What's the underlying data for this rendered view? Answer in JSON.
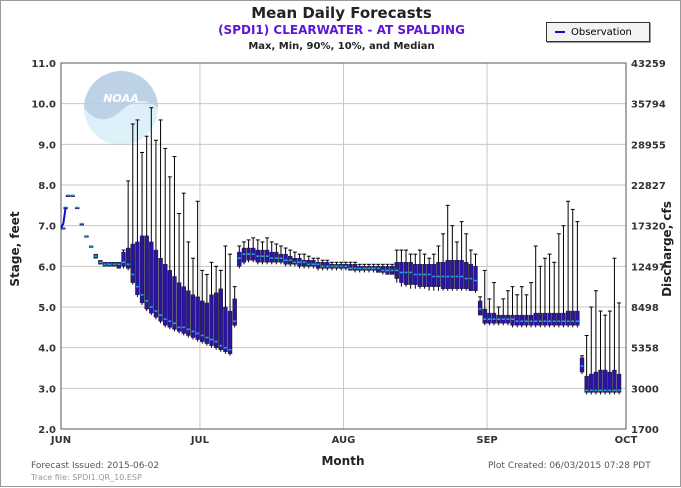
{
  "chart_data": {
    "type": "boxplot",
    "title": "Mean Daily Forecasts",
    "subtitle": "(SPDI1) CLEARWATER - AT SPALDING",
    "subtitle2": "Max, Min, 90%, 10%, and Median",
    "xlabel": "Month",
    "ylabel_left": "Stage, feet",
    "ylabel_right": "Discharge, cfs",
    "ylim": [
      2.0,
      11.0
    ],
    "yticks_left": [
      "2.0",
      "3.0",
      "4.0",
      "5.0",
      "6.0",
      "7.0",
      "8.0",
      "9.0",
      "10.0",
      "11.0"
    ],
    "yticks_right": [
      {
        "stage": 2.0,
        "label": "1700"
      },
      {
        "stage": 3.0,
        "label": "3000"
      },
      {
        "stage": 4.0,
        "label": "5358"
      },
      {
        "stage": 5.0,
        "label": "8498"
      },
      {
        "stage": 6.0,
        "label": "12497"
      },
      {
        "stage": 7.0,
        "label": "17320"
      },
      {
        "stage": 8.0,
        "label": "22827"
      },
      {
        "stage": 9.0,
        "label": "28955"
      },
      {
        "stage": 10.0,
        "label": "35794"
      },
      {
        "stage": 11.0,
        "label": "43259"
      }
    ],
    "xticks": [
      "JUN",
      "JUL",
      "AUG",
      "SEP",
      "OCT"
    ],
    "legend": {
      "label": "Observation",
      "placement": "top-right"
    },
    "observation": [
      [
        0.0,
        6.95
      ],
      [
        0.5,
        7.05
      ],
      [
        1.0,
        7.45
      ]
    ],
    "series": [
      {
        "day": 0.5,
        "median": 6.95,
        "p10": 6.95,
        "p90": 6.95,
        "min": 6.95,
        "max": 6.95
      },
      {
        "day": 1,
        "median": 7.45,
        "p10": 7.45,
        "p90": 7.45,
        "min": 7.45,
        "max": 7.45
      },
      {
        "day": 1.5,
        "median": 7.75,
        "p10": 7.75,
        "p90": 7.75,
        "min": 7.75,
        "max": 7.75
      },
      {
        "day": 2.5,
        "median": 7.75,
        "p10": 7.75,
        "p90": 7.75,
        "min": 7.75,
        "max": 7.75
      },
      {
        "day": 3.5,
        "median": 7.45,
        "p10": 7.45,
        "p90": 7.45,
        "min": 7.45,
        "max": 7.45
      },
      {
        "day": 4.5,
        "median": 7.05,
        "p10": 7.05,
        "p90": 7.05,
        "min": 7.05,
        "max": 7.05
      },
      {
        "day": 5.5,
        "median": 6.75,
        "p10": 6.75,
        "p90": 6.75,
        "min": 6.75,
        "max": 6.75
      },
      {
        "day": 6.5,
        "median": 6.5,
        "p10": 6.5,
        "p90": 6.5,
        "min": 6.5,
        "max": 6.5
      },
      {
        "day": 7.5,
        "median": 6.25,
        "p10": 6.2,
        "p90": 6.3,
        "min": 6.2,
        "max": 6.3
      },
      {
        "day": 8.5,
        "median": 6.1,
        "p10": 6.05,
        "p90": 6.15,
        "min": 6.05,
        "max": 6.15
      },
      {
        "day": 9.5,
        "median": 6.05,
        "p10": 6.0,
        "p90": 6.1,
        "min": 6.0,
        "max": 6.1
      },
      {
        "day": 10.5,
        "median": 6.05,
        "p10": 6.0,
        "p90": 6.1,
        "min": 6.0,
        "max": 6.1
      },
      {
        "day": 11.5,
        "median": 6.05,
        "p10": 6.0,
        "p90": 6.1,
        "min": 6.0,
        "max": 6.1
      },
      {
        "day": 12.5,
        "median": 6.05,
        "p10": 5.95,
        "p90": 6.1,
        "min": 5.95,
        "max": 6.1
      },
      {
        "day": 13.5,
        "median": 6.1,
        "p10": 6.0,
        "p90": 6.35,
        "min": 5.95,
        "max": 6.4
      },
      {
        "day": 14.5,
        "median": 6.05,
        "p10": 5.95,
        "p90": 6.45,
        "min": 5.9,
        "max": 8.1
      },
      {
        "day": 15.5,
        "median": 5.8,
        "p10": 5.6,
        "p90": 6.55,
        "min": 5.55,
        "max": 9.5
      },
      {
        "day": 16.5,
        "median": 5.5,
        "p10": 5.3,
        "p90": 6.6,
        "min": 5.25,
        "max": 9.6
      },
      {
        "day": 17.5,
        "median": 5.3,
        "p10": 5.1,
        "p90": 6.75,
        "min": 5.05,
        "max": 8.8
      },
      {
        "day": 18.5,
        "median": 5.15,
        "p10": 4.95,
        "p90": 6.75,
        "min": 4.9,
        "max": 9.2
      },
      {
        "day": 19.5,
        "median": 5.0,
        "p10": 4.85,
        "p90": 6.6,
        "min": 4.8,
        "max": 9.9
      },
      {
        "day": 20.5,
        "median": 4.9,
        "p10": 4.75,
        "p90": 6.4,
        "min": 4.7,
        "max": 9.1
      },
      {
        "day": 21.5,
        "median": 4.8,
        "p10": 4.65,
        "p90": 6.2,
        "min": 4.6,
        "max": 9.6
      },
      {
        "day": 22.5,
        "median": 4.7,
        "p10": 4.55,
        "p90": 6.05,
        "min": 4.5,
        "max": 8.9
      },
      {
        "day": 23.5,
        "median": 4.65,
        "p10": 4.5,
        "p90": 5.9,
        "min": 4.45,
        "max": 8.2
      },
      {
        "day": 24.5,
        "median": 4.6,
        "p10": 4.45,
        "p90": 5.75,
        "min": 4.4,
        "max": 8.7
      },
      {
        "day": 25.5,
        "median": 4.5,
        "p10": 4.4,
        "p90": 5.6,
        "min": 4.35,
        "max": 7.3
      },
      {
        "day": 26.5,
        "median": 4.5,
        "p10": 4.35,
        "p90": 5.5,
        "min": 4.3,
        "max": 7.8
      },
      {
        "day": 27.5,
        "median": 4.45,
        "p10": 4.3,
        "p90": 5.4,
        "min": 4.25,
        "max": 6.6
      },
      {
        "day": 28.5,
        "median": 4.4,
        "p10": 4.25,
        "p90": 5.3,
        "min": 4.2,
        "max": 6.2
      },
      {
        "day": 29.5,
        "median": 4.35,
        "p10": 4.2,
        "p90": 5.25,
        "min": 4.15,
        "max": 7.6
      },
      {
        "day": 30.5,
        "median": 4.3,
        "p10": 4.15,
        "p90": 5.15,
        "min": 4.1,
        "max": 5.9
      },
      {
        "day": 31.5,
        "median": 4.25,
        "p10": 4.1,
        "p90": 5.1,
        "min": 4.05,
        "max": 5.8
      },
      {
        "day": 32.5,
        "median": 4.2,
        "p10": 4.05,
        "p90": 5.3,
        "min": 4.0,
        "max": 6.1
      },
      {
        "day": 33.5,
        "median": 4.15,
        "p10": 4.0,
        "p90": 5.35,
        "min": 3.95,
        "max": 6.0
      },
      {
        "day": 34.5,
        "median": 4.05,
        "p10": 3.95,
        "p90": 5.45,
        "min": 3.9,
        "max": 5.9
      },
      {
        "day": 35.5,
        "median": 4.0,
        "p10": 3.9,
        "p90": 5.0,
        "min": 3.85,
        "max": 6.5
      },
      {
        "day": 36.5,
        "median": 3.95,
        "p10": 3.85,
        "p90": 4.9,
        "min": 3.8,
        "max": 6.3
      },
      {
        "day": 37.5,
        "median": 4.65,
        "p10": 4.55,
        "p90": 5.2,
        "min": 4.5,
        "max": 5.5
      },
      {
        "day": 38.5,
        "median": 6.2,
        "p10": 6.0,
        "p90": 6.35,
        "min": 5.95,
        "max": 6.5
      },
      {
        "day": 39.5,
        "median": 6.3,
        "p10": 6.1,
        "p90": 6.45,
        "min": 6.05,
        "max": 6.6
      },
      {
        "day": 40.5,
        "median": 6.3,
        "p10": 6.15,
        "p90": 6.45,
        "min": 6.1,
        "max": 6.65
      },
      {
        "day": 41.5,
        "median": 6.3,
        "p10": 6.15,
        "p90": 6.45,
        "min": 6.1,
        "max": 6.7
      },
      {
        "day": 42.5,
        "median": 6.25,
        "p10": 6.1,
        "p90": 6.4,
        "min": 6.05,
        "max": 6.65
      },
      {
        "day": 43.5,
        "median": 6.25,
        "p10": 6.1,
        "p90": 6.4,
        "min": 6.05,
        "max": 6.6
      },
      {
        "day": 44.5,
        "median": 6.25,
        "p10": 6.1,
        "p90": 6.4,
        "min": 6.05,
        "max": 6.7
      },
      {
        "day": 45.5,
        "median": 6.2,
        "p10": 6.1,
        "p90": 6.35,
        "min": 6.05,
        "max": 6.6
      },
      {
        "day": 46.5,
        "median": 6.2,
        "p10": 6.1,
        "p90": 6.35,
        "min": 6.05,
        "max": 6.55
      },
      {
        "day": 47.5,
        "median": 6.2,
        "p10": 6.1,
        "p90": 6.3,
        "min": 6.05,
        "max": 6.5
      },
      {
        "day": 48.5,
        "median": 6.15,
        "p10": 6.05,
        "p90": 6.3,
        "min": 6.0,
        "max": 6.45
      },
      {
        "day": 49.5,
        "median": 6.15,
        "p10": 6.05,
        "p90": 6.25,
        "min": 6.0,
        "max": 6.4
      },
      {
        "day": 50.5,
        "median": 6.1,
        "p10": 6.05,
        "p90": 6.2,
        "min": 6.0,
        "max": 6.35
      },
      {
        "day": 51.5,
        "median": 6.1,
        "p10": 6.0,
        "p90": 6.2,
        "min": 5.95,
        "max": 6.3
      },
      {
        "day": 52.5,
        "median": 6.1,
        "p10": 6.0,
        "p90": 6.15,
        "min": 5.95,
        "max": 6.3
      },
      {
        "day": 53.5,
        "median": 6.05,
        "p10": 6.0,
        "p90": 6.15,
        "min": 5.95,
        "max": 6.25
      },
      {
        "day": 54.5,
        "median": 6.05,
        "p10": 6.0,
        "p90": 6.15,
        "min": 5.95,
        "max": 6.2
      },
      {
        "day": 55.5,
        "median": 6.05,
        "p10": 5.95,
        "p90": 6.1,
        "min": 5.9,
        "max": 6.2
      },
      {
        "day": 56.5,
        "median": 6.0,
        "p10": 5.95,
        "p90": 6.1,
        "min": 5.9,
        "max": 6.15
      },
      {
        "day": 57.5,
        "median": 6.0,
        "p10": 5.95,
        "p90": 6.1,
        "min": 5.9,
        "max": 6.15
      },
      {
        "day": 58.5,
        "median": 6.0,
        "p10": 5.95,
        "p90": 6.05,
        "min": 5.9,
        "max": 6.1
      },
      {
        "day": 59.5,
        "median": 6.0,
        "p10": 5.95,
        "p90": 6.05,
        "min": 5.9,
        "max": 6.1
      },
      {
        "day": 60.5,
        "median": 6.0,
        "p10": 5.95,
        "p90": 6.05,
        "min": 5.9,
        "max": 6.1
      },
      {
        "day": 61.5,
        "median": 6.0,
        "p10": 5.95,
        "p90": 6.05,
        "min": 5.9,
        "max": 6.1
      },
      {
        "day": 62.5,
        "median": 5.95,
        "p10": 5.9,
        "p90": 6.05,
        "min": 5.9,
        "max": 6.1
      },
      {
        "day": 63.5,
        "median": 5.95,
        "p10": 5.9,
        "p90": 6.05,
        "min": 5.85,
        "max": 6.1
      },
      {
        "day": 64.5,
        "median": 5.95,
        "p10": 5.9,
        "p90": 6.0,
        "min": 5.85,
        "max": 6.05
      },
      {
        "day": 65.5,
        "median": 5.95,
        "p10": 5.9,
        "p90": 6.0,
        "min": 5.85,
        "max": 6.05
      },
      {
        "day": 66.5,
        "median": 5.95,
        "p10": 5.9,
        "p90": 6.0,
        "min": 5.85,
        "max": 6.05
      },
      {
        "day": 67.5,
        "median": 5.95,
        "p10": 5.9,
        "p90": 6.0,
        "min": 5.85,
        "max": 6.05
      },
      {
        "day": 68.5,
        "median": 5.95,
        "p10": 5.85,
        "p90": 6.0,
        "min": 5.85,
        "max": 6.05
      },
      {
        "day": 69.5,
        "median": 5.9,
        "p10": 5.85,
        "p90": 6.0,
        "min": 5.8,
        "max": 6.05
      },
      {
        "day": 70.5,
        "median": 5.9,
        "p10": 5.8,
        "p90": 6.0,
        "min": 5.8,
        "max": 6.05
      },
      {
        "day": 71.5,
        "median": 5.9,
        "p10": 5.8,
        "p90": 6.0,
        "min": 5.8,
        "max": 6.05
      },
      {
        "day": 72.5,
        "median": 5.9,
        "p10": 5.7,
        "p90": 6.1,
        "min": 5.6,
        "max": 6.4
      },
      {
        "day": 73.5,
        "median": 5.85,
        "p10": 5.6,
        "p90": 6.1,
        "min": 5.5,
        "max": 6.4
      },
      {
        "day": 74.5,
        "median": 5.85,
        "p10": 5.55,
        "p90": 6.1,
        "min": 5.5,
        "max": 6.4
      },
      {
        "day": 75.5,
        "median": 5.85,
        "p10": 5.55,
        "p90": 6.1,
        "min": 5.45,
        "max": 6.3
      },
      {
        "day": 76.5,
        "median": 5.8,
        "p10": 5.55,
        "p90": 6.05,
        "min": 5.45,
        "max": 6.3
      },
      {
        "day": 77.5,
        "median": 5.8,
        "p10": 5.5,
        "p90": 6.05,
        "min": 5.45,
        "max": 6.4
      },
      {
        "day": 78.5,
        "median": 5.8,
        "p10": 5.5,
        "p90": 6.05,
        "min": 5.45,
        "max": 6.3
      },
      {
        "day": 79.5,
        "median": 5.8,
        "p10": 5.5,
        "p90": 6.05,
        "min": 5.4,
        "max": 6.2
      },
      {
        "day": 80.5,
        "median": 5.75,
        "p10": 5.5,
        "p90": 6.05,
        "min": 5.4,
        "max": 6.3
      },
      {
        "day": 81.5,
        "median": 5.75,
        "p10": 5.5,
        "p90": 6.1,
        "min": 5.4,
        "max": 6.5
      },
      {
        "day": 82.5,
        "median": 5.75,
        "p10": 5.45,
        "p90": 6.1,
        "min": 5.4,
        "max": 6.8
      },
      {
        "day": 83.5,
        "median": 5.75,
        "p10": 5.45,
        "p90": 6.15,
        "min": 5.4,
        "max": 7.5
      },
      {
        "day": 84.5,
        "median": 5.75,
        "p10": 5.45,
        "p90": 6.15,
        "min": 5.4,
        "max": 7.0
      },
      {
        "day": 85.5,
        "median": 5.75,
        "p10": 5.45,
        "p90": 6.15,
        "min": 5.4,
        "max": 6.6
      },
      {
        "day": 86.5,
        "median": 5.75,
        "p10": 5.45,
        "p90": 6.15,
        "min": 5.4,
        "max": 7.1
      },
      {
        "day": 87.5,
        "median": 5.7,
        "p10": 5.45,
        "p90": 6.1,
        "min": 5.4,
        "max": 6.8
      },
      {
        "day": 88.5,
        "median": 5.7,
        "p10": 5.4,
        "p90": 6.05,
        "min": 5.4,
        "max": 6.4
      },
      {
        "day": 89.5,
        "median": 5.65,
        "p10": 5.4,
        "p90": 6.0,
        "min": 5.35,
        "max": 6.3
      },
      {
        "day": 90.5,
        "median": 4.95,
        "p10": 4.8,
        "p90": 5.15,
        "min": 4.8,
        "max": 5.25
      },
      {
        "day": 91.5,
        "median": 4.7,
        "p10": 4.6,
        "p90": 4.95,
        "min": 4.55,
        "max": 5.9
      },
      {
        "day": 92.5,
        "median": 4.7,
        "p10": 4.6,
        "p90": 4.85,
        "min": 4.55,
        "max": 5.2
      },
      {
        "day": 93.5,
        "median": 4.7,
        "p10": 4.6,
        "p90": 4.85,
        "min": 4.55,
        "max": 5.6
      },
      {
        "day": 94.5,
        "median": 4.7,
        "p10": 4.6,
        "p90": 4.8,
        "min": 4.55,
        "max": 5.0
      },
      {
        "day": 95.5,
        "median": 4.7,
        "p10": 4.6,
        "p90": 4.8,
        "min": 4.55,
        "max": 5.2
      },
      {
        "day": 96.5,
        "median": 4.7,
        "p10": 4.6,
        "p90": 4.8,
        "min": 4.55,
        "max": 5.4
      },
      {
        "day": 97.5,
        "median": 4.7,
        "p10": 4.55,
        "p90": 4.8,
        "min": 4.5,
        "max": 5.5
      },
      {
        "day": 98.5,
        "median": 4.65,
        "p10": 4.55,
        "p90": 4.8,
        "min": 4.5,
        "max": 5.3
      },
      {
        "day": 99.5,
        "median": 4.65,
        "p10": 4.55,
        "p90": 4.8,
        "min": 4.5,
        "max": 5.5
      },
      {
        "day": 100.5,
        "median": 4.65,
        "p10": 4.55,
        "p90": 4.8,
        "min": 4.5,
        "max": 5.3
      },
      {
        "day": 101.5,
        "median": 4.65,
        "p10": 4.55,
        "p90": 4.8,
        "min": 4.5,
        "max": 5.6
      },
      {
        "day": 102.5,
        "median": 4.65,
        "p10": 4.55,
        "p90": 4.85,
        "min": 4.5,
        "max": 6.5
      },
      {
        "day": 103.5,
        "median": 4.65,
        "p10": 4.55,
        "p90": 4.85,
        "min": 4.5,
        "max": 6.0
      },
      {
        "day": 104.5,
        "median": 4.65,
        "p10": 4.55,
        "p90": 4.85,
        "min": 4.5,
        "max": 6.2
      },
      {
        "day": 105.5,
        "median": 4.65,
        "p10": 4.55,
        "p90": 4.85,
        "min": 4.5,
        "max": 6.3
      },
      {
        "day": 106.5,
        "median": 4.65,
        "p10": 4.55,
        "p90": 4.85,
        "min": 4.5,
        "max": 6.1
      },
      {
        "day": 107.5,
        "median": 4.65,
        "p10": 4.55,
        "p90": 4.85,
        "min": 4.5,
        "max": 6.8
      },
      {
        "day": 108.5,
        "median": 4.65,
        "p10": 4.55,
        "p90": 4.85,
        "min": 4.5,
        "max": 7.0
      },
      {
        "day": 109.5,
        "median": 4.65,
        "p10": 4.55,
        "p90": 4.9,
        "min": 4.5,
        "max": 7.6
      },
      {
        "day": 110.5,
        "median": 4.65,
        "p10": 4.55,
        "p90": 4.9,
        "min": 4.5,
        "max": 7.4
      },
      {
        "day": 111.5,
        "median": 4.65,
        "p10": 4.55,
        "p90": 4.9,
        "min": 4.5,
        "max": 7.1
      },
      {
        "day": 112.5,
        "median": 3.55,
        "p10": 3.4,
        "p90": 3.75,
        "min": 3.35,
        "max": 3.8
      },
      {
        "day": 113.5,
        "median": 2.95,
        "p10": 2.9,
        "p90": 3.3,
        "min": 2.85,
        "max": 4.3
      },
      {
        "day": 114.5,
        "median": 2.95,
        "p10": 2.9,
        "p90": 3.35,
        "min": 2.85,
        "max": 5.0
      },
      {
        "day": 115.5,
        "median": 2.95,
        "p10": 2.9,
        "p90": 3.4,
        "min": 2.85,
        "max": 5.4
      },
      {
        "day": 116.5,
        "median": 2.95,
        "p10": 2.9,
        "p90": 3.45,
        "min": 2.85,
        "max": 4.9
      },
      {
        "day": 117.5,
        "median": 2.95,
        "p10": 2.9,
        "p90": 3.45,
        "min": 2.85,
        "max": 4.8
      },
      {
        "day": 118.5,
        "median": 2.95,
        "p10": 2.9,
        "p90": 3.4,
        "min": 2.85,
        "max": 4.9
      },
      {
        "day": 119.5,
        "median": 2.95,
        "p10": 2.9,
        "p90": 3.45,
        "min": 2.85,
        "max": 6.2
      },
      {
        "day": 120.5,
        "median": 2.95,
        "p10": 2.9,
        "p90": 3.35,
        "min": 2.85,
        "max": 5.1
      }
    ]
  },
  "footer": {
    "issued": "Forecast Issued: 2015-06-02",
    "trace_file": "Trace file: SPDI1.QR_10.ESP",
    "plot_created": "Plot Created:    06/03/2015 07:28 PDT"
  },
  "colors": {
    "box": "#2b14a0",
    "median": "#1fa7e0",
    "whisker": "#000000",
    "observation": "#1010c0",
    "grid": "#c8c8c8"
  }
}
